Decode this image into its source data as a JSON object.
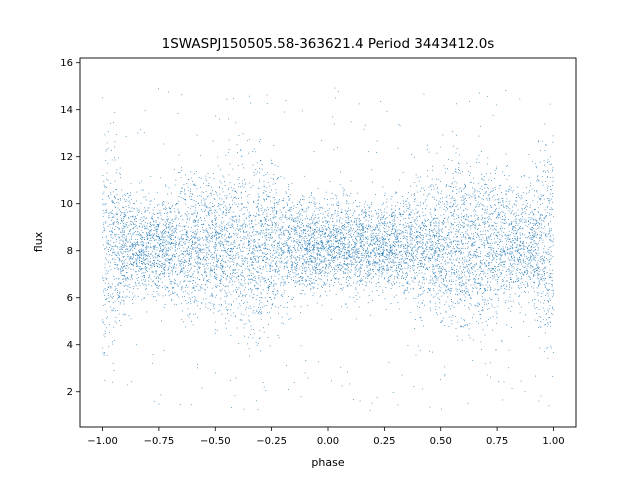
{
  "chart_data": {
    "type": "scatter",
    "title": "1SWASPJ150505.58-363621.4 Period 3443412.0s",
    "xlabel": "phase",
    "ylabel": "flux",
    "xlim": [
      -1.1,
      1.1
    ],
    "ylim": [
      0.5,
      16.2
    ],
    "grid": false,
    "legend": "none",
    "marker_color": "#1f77b4",
    "x_ticks": [
      -1.0,
      -0.75,
      -0.5,
      -0.25,
      0.0,
      0.25,
      0.5,
      0.75,
      1.0
    ],
    "x_tick_labels": [
      "−1.00",
      "−0.75",
      "−0.50",
      "−0.25",
      "0.00",
      "0.25",
      "0.50",
      "0.75",
      "1.00"
    ],
    "y_ticks": [
      2,
      4,
      6,
      8,
      10,
      12,
      14,
      16
    ],
    "y_tick_labels": [
      "2",
      "4",
      "6",
      "8",
      "10",
      "12",
      "14",
      "16"
    ],
    "x_range": [
      -1.0,
      1.0
    ],
    "baseline_flux": 8.2,
    "phase_profile": [
      {
        "phase": -1.0,
        "flux_low": 1.5,
        "flux_high": 13.0
      },
      {
        "phase": -0.9,
        "flux_low": 5.5,
        "flux_high": 10.5
      },
      {
        "phase": -0.8,
        "flux_low": 6.2,
        "flux_high": 10.0
      },
      {
        "phase": -0.7,
        "flux_low": 5.5,
        "flux_high": 10.5
      },
      {
        "phase": -0.62,
        "flux_low": 4.8,
        "flux_high": 11.0
      },
      {
        "phase": -0.5,
        "flux_low": 6.0,
        "flux_high": 11.5
      },
      {
        "phase": -0.4,
        "flux_low": 5.0,
        "flux_high": 12.5
      },
      {
        "phase": -0.3,
        "flux_low": 5.0,
        "flux_high": 12.5
      },
      {
        "phase": -0.2,
        "flux_low": 5.5,
        "flux_high": 11.0
      },
      {
        "phase": -0.1,
        "flux_low": 6.0,
        "flux_high": 10.0
      },
      {
        "phase": 0.0,
        "flux_low": 6.0,
        "flux_high": 10.0
      },
      {
        "phase": 0.1,
        "flux_low": 6.0,
        "flux_high": 10.0
      },
      {
        "phase": 0.2,
        "flux_low": 6.2,
        "flux_high": 10.0
      },
      {
        "phase": 0.3,
        "flux_low": 5.8,
        "flux_high": 10.0
      },
      {
        "phase": 0.38,
        "flux_low": 5.0,
        "flux_high": 10.5
      },
      {
        "phase": 0.5,
        "flux_low": 5.5,
        "flux_high": 11.5
      },
      {
        "phase": 0.6,
        "flux_low": 5.0,
        "flux_high": 12.5
      },
      {
        "phase": 0.7,
        "flux_low": 5.0,
        "flux_high": 12.0
      },
      {
        "phase": 0.8,
        "flux_low": 5.5,
        "flux_high": 11.0
      },
      {
        "phase": 0.9,
        "flux_low": 5.8,
        "flux_high": 10.5
      },
      {
        "phase": 1.0,
        "flux_low": 1.5,
        "flux_high": 13.0
      }
    ],
    "approx_point_count": 9000
  }
}
